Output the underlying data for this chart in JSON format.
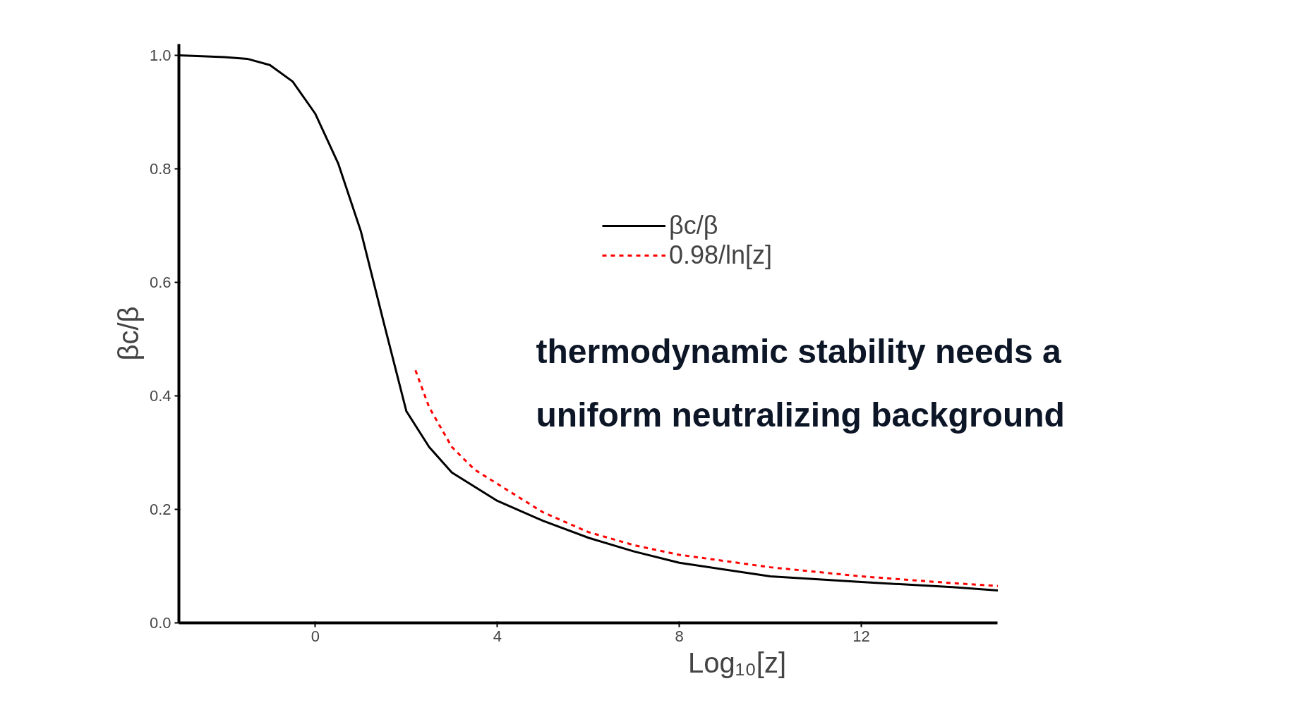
{
  "chart_data": {
    "type": "line",
    "xlabel": "Log₁₀[z]",
    "ylabel": "βc/β",
    "xlim": [
      -3,
      15
    ],
    "ylim": [
      0,
      1.02
    ],
    "xticks": [
      0,
      4,
      8,
      12
    ],
    "yticks": [
      {
        "value": 0,
        "label": "0.0"
      },
      {
        "value": 0.2,
        "label": "0.2"
      },
      {
        "value": 0.4,
        "label": "0.4"
      },
      {
        "value": 0.6,
        "label": "0.6"
      },
      {
        "value": 0.8,
        "label": "0.8"
      },
      {
        "value": 1,
        "label": "1.0"
      }
    ],
    "grid": false,
    "legend": "top",
    "annotations": [
      "thermodynamic stability needs a\nuniform neutralizing background"
    ],
    "series": [
      {
        "name": "βc/β",
        "color": "#000000",
        "line_style": "solid",
        "x": [
          -3,
          -2,
          -1.5,
          -1,
          -0.5,
          0,
          0.5,
          1,
          1.5,
          2,
          2.5,
          3,
          4,
          5,
          6,
          7,
          8,
          10,
          12,
          14,
          15
        ],
        "values": [
          1.0,
          0.997,
          0.994,
          0.983,
          0.954,
          0.897,
          0.81,
          0.69,
          0.53,
          0.373,
          0.31,
          0.265,
          0.215,
          0.18,
          0.15,
          0.126,
          0.106,
          0.082,
          0.072,
          0.063,
          0.057
        ]
      },
      {
        "name": "0.98/ln[z]",
        "color": "#ff0000",
        "line_style": "dashed",
        "x": [
          2.2,
          2.5,
          3,
          3.5,
          4,
          5,
          6,
          7,
          8,
          10,
          12,
          14,
          15
        ],
        "values": [
          0.445,
          0.38,
          0.31,
          0.27,
          0.245,
          0.195,
          0.16,
          0.137,
          0.12,
          0.098,
          0.082,
          0.07,
          0.065
        ]
      }
    ]
  }
}
